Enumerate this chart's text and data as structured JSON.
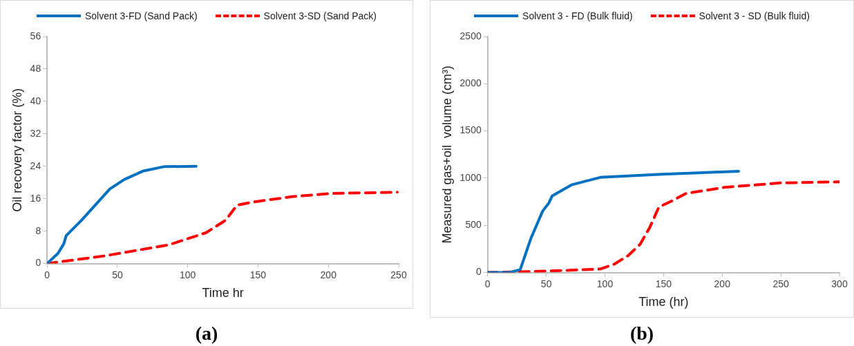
{
  "chart_data": [
    {
      "type": "line",
      "xlabel": "Time hr",
      "ylabel": "Oil recovery factor (%)",
      "annotations": [
        "(a)"
      ],
      "xlim": [
        0,
        250
      ],
      "xticks": [
        0,
        50,
        100,
        150,
        200,
        250
      ],
      "ylim": [
        0,
        56
      ],
      "yticks": [
        0,
        8,
        16,
        24,
        32,
        40,
        48,
        56
      ],
      "grid": false,
      "legend": "top",
      "marker": "none",
      "series": [
        {
          "name": "Solvent 3-FD (Sand Pack)",
          "color": "#0070c0",
          "line_style": "solid",
          "x": [
            0,
            7.7,
            11.9,
            13.6,
            24.5,
            44.6,
            54.7,
            68,
            83,
            106
          ],
          "values": [
            0,
            2.5,
            4.9,
            6.9,
            10.7,
            18.4,
            20.7,
            22.8,
            23.9,
            24
          ]
        },
        {
          "name": "Solvent 3-SD (Sand Pack)",
          "color": "#ff0000",
          "line_style": "dashed",
          "x": [
            0,
            41,
            83,
            86.5,
            113,
            127,
            135,
            145,
            174,
            202,
            249
          ],
          "values": [
            0,
            1.9,
            4.4,
            4.6,
            7.6,
            10.7,
            14.4,
            15.1,
            16.5,
            17.3,
            17.6
          ]
        }
      ]
    },
    {
      "type": "line",
      "xlabel": "Time (hr)",
      "ylabel": "Measured gas+oil  volume (cm³)",
      "annotations": [
        "(b)"
      ],
      "xlim": [
        0,
        300
      ],
      "xticks": [
        0,
        50,
        100,
        150,
        200,
        250,
        300
      ],
      "ylim": [
        0,
        2500
      ],
      "yticks": [
        0,
        500,
        1000,
        1500,
        2000,
        2500
      ],
      "grid": false,
      "legend": "top",
      "marker": "none",
      "series": [
        {
          "name": "Solvent 3 - FD (Bulk fluid)",
          "color": "#0070c0",
          "line_style": "solid",
          "x": [
            0,
            18.7,
            27.8,
            37,
            47,
            52,
            55,
            71.5,
            96,
            149,
            214
          ],
          "values": [
            0,
            0,
            31,
            365,
            653,
            732,
            811,
            929,
            1008,
            1042,
            1073
          ]
        },
        {
          "name": "Solvent 3 - SD (Bulk fluid)",
          "color": "#ff0000",
          "line_style": "dashed",
          "x": [
            0,
            50,
            96,
            108,
            120,
            130,
            138,
            146,
            157,
            169,
            202,
            250,
            300
          ],
          "values": [
            0,
            15,
            37,
            89,
            181,
            299,
            472,
            693,
            758,
            837,
            903,
            950,
            961
          ]
        }
      ]
    }
  ]
}
